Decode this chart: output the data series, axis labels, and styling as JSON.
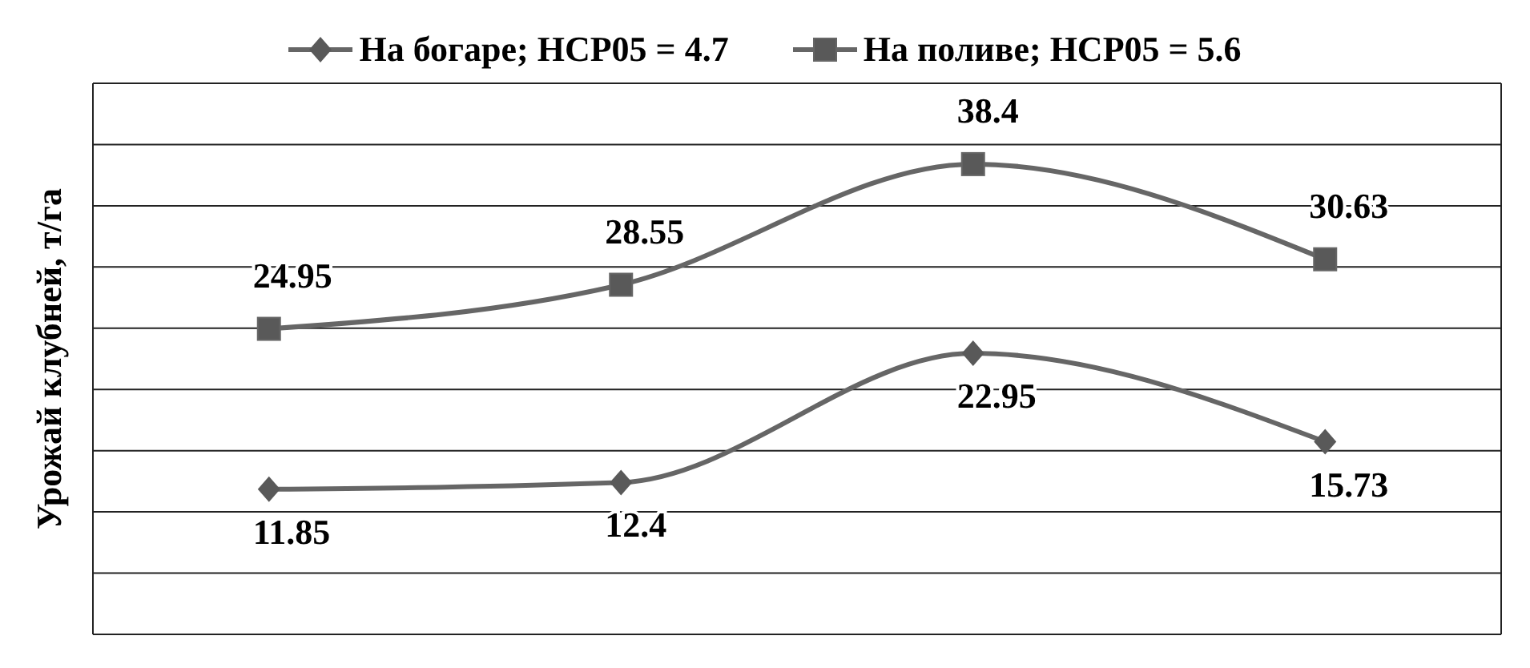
{
  "chart_data": {
    "type": "line",
    "ylabel": "Урожай клубней, т/га",
    "categories": [
      null,
      null,
      null,
      null
    ],
    "series": [
      {
        "name": "На богаре;  НСР05 = 4.7",
        "color": "#666666",
        "marker": "diamond",
        "values": [
          11.85,
          12.4,
          22.95,
          15.73
        ]
      },
      {
        "name": "На поливе;  НСР05 = 5.6",
        "color": "#666666",
        "marker": "square",
        "values": [
          24.95,
          28.55,
          38.4,
          30.63
        ]
      }
    ],
    "ylim": [
      0,
      45
    ],
    "yticks": [
      0,
      5,
      10,
      15,
      20,
      25,
      30,
      35,
      40,
      45
    ],
    "tick_labels": false,
    "grid": true,
    "legend": "top",
    "data_labels": true
  }
}
